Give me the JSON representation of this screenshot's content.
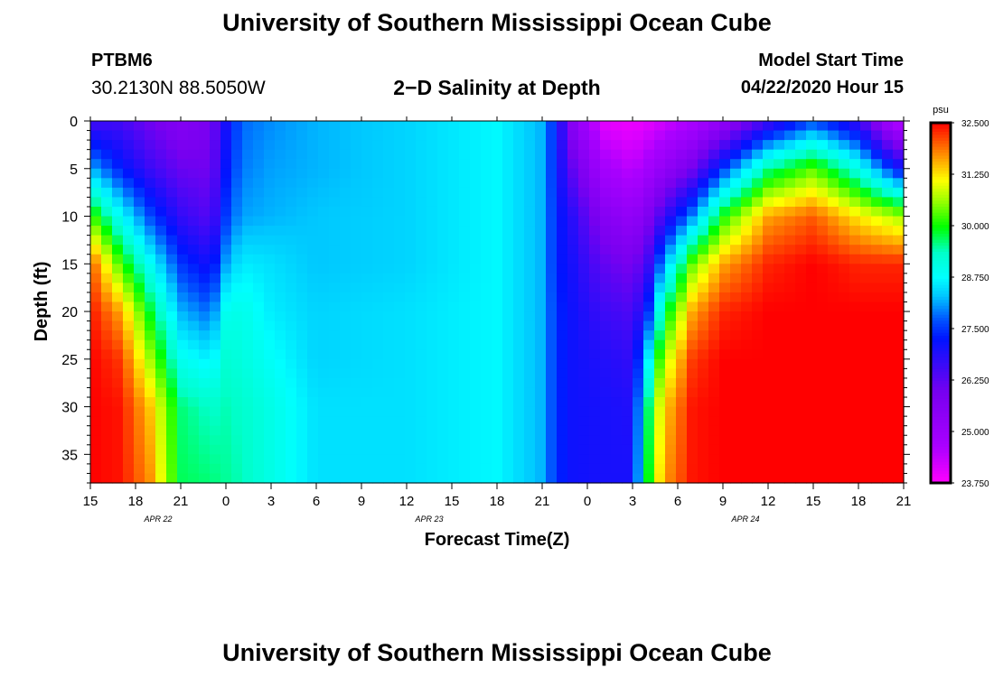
{
  "header": {
    "title": "University of Southern Mississippi Ocean Cube",
    "station": "PTBM6",
    "coords": "30.2130N 88.5050W",
    "plot_title": "2−D Salinity at Depth",
    "model_start_label": "Model Start Time",
    "model_start_value": "04/22/2020 Hour 15"
  },
  "footer": {
    "title": "University of Southern Mississippi Ocean Cube"
  },
  "chart_data": {
    "type": "heatmap",
    "title": "2−D Salinity at Depth",
    "xlabel": "Forecast Time(Z)",
    "ylabel": "Depth (ft)",
    "x_ticks": [
      "15",
      "18",
      "21",
      "0",
      "3",
      "6",
      "9",
      "12",
      "15",
      "18",
      "21",
      "0",
      "3",
      "6",
      "9",
      "12",
      "15",
      "18",
      "21"
    ],
    "date_labels": [
      {
        "label": "APR 22",
        "tick_index": 1
      },
      {
        "label": "APR 23",
        "tick_index": 7
      },
      {
        "label": "APR 24",
        "tick_index": 14
      }
    ],
    "y_ticks": [
      0,
      5,
      10,
      15,
      20,
      25,
      30,
      35
    ],
    "ylim": [
      0,
      38
    ],
    "x_hours": [
      0,
      54
    ],
    "colorbar": {
      "unit": "psu",
      "min": 23.75,
      "max": 32.5,
      "tick_labels": [
        "32.500",
        "31.250",
        "30.000",
        "28.750",
        "27.500",
        "26.250",
        "25.000",
        "23.750"
      ]
    },
    "profiles": [
      {
        "t": 0,
        "s0": 26.5,
        "s5": 28.2,
        "s10": 30.3,
        "s15": 32.1,
        "s20": 32.4,
        "s25": 32.5,
        "s30": 32.5,
        "s38": 32.5
      },
      {
        "t": 2,
        "s0": 26.5,
        "s5": 27.3,
        "s10": 28.8,
        "s15": 30.2,
        "s20": 31.6,
        "s25": 32.2,
        "s30": 32.4,
        "s38": 32.4
      },
      {
        "t": 4,
        "s0": 26.0,
        "s5": 26.6,
        "s10": 27.6,
        "s15": 28.8,
        "s20": 29.8,
        "s25": 30.6,
        "s30": 31.4,
        "s38": 31.7
      },
      {
        "t": 6,
        "s0": 25.6,
        "s5": 26.1,
        "s10": 26.7,
        "s15": 27.5,
        "s20": 28.2,
        "s25": 28.9,
        "s30": 29.6,
        "s38": 29.7
      },
      {
        "t": 8,
        "s0": 25.9,
        "s5": 26.0,
        "s10": 26.3,
        "s15": 27.0,
        "s20": 27.8,
        "s25": 28.6,
        "s30": 29.3,
        "s38": 29.6
      },
      {
        "t": 9,
        "s0": 27.0,
        "s5": 27.2,
        "s10": 27.5,
        "s15": 28.1,
        "s20": 28.9,
        "s25": 29.2,
        "s30": 29.4,
        "s38": 29.5
      },
      {
        "t": 10,
        "s0": 27.8,
        "s5": 27.9,
        "s10": 28.1,
        "s15": 28.6,
        "s20": 29.0,
        "s25": 29.1,
        "s30": 29.3,
        "s38": 29.4
      },
      {
        "t": 12,
        "s0": 28.0,
        "s5": 28.1,
        "s10": 28.2,
        "s15": 28.5,
        "s20": 28.6,
        "s25": 28.8,
        "s30": 29.0,
        "s38": 29.0
      },
      {
        "t": 15,
        "s0": 28.2,
        "s5": 28.2,
        "s10": 28.3,
        "s15": 28.3,
        "s20": 28.4,
        "s25": 28.4,
        "s30": 28.5,
        "s38": 28.5
      },
      {
        "t": 21,
        "s0": 28.4,
        "s5": 28.4,
        "s10": 28.4,
        "s15": 28.4,
        "s20": 28.5,
        "s25": 28.5,
        "s30": 28.5,
        "s38": 28.5
      },
      {
        "t": 27,
        "s0": 28.7,
        "s5": 28.7,
        "s10": 28.7,
        "s15": 28.7,
        "s20": 28.7,
        "s25": 28.7,
        "s30": 28.7,
        "s38": 28.7
      },
      {
        "t": 30,
        "s0": 28.2,
        "s5": 28.2,
        "s10": 28.2,
        "s15": 28.2,
        "s20": 28.2,
        "s25": 28.2,
        "s30": 28.2,
        "s38": 28.2
      },
      {
        "t": 31,
        "s0": 27.2,
        "s5": 27.2,
        "s10": 27.3,
        "s15": 27.3,
        "s20": 27.4,
        "s25": 27.4,
        "s30": 27.4,
        "s38": 27.4
      },
      {
        "t": 32,
        "s0": 25.5,
        "s5": 26.2,
        "s10": 26.8,
        "s15": 27.0,
        "s20": 27.1,
        "s25": 27.1,
        "s30": 27.1,
        "s38": 27.1
      },
      {
        "t": 34,
        "s0": 24.0,
        "s5": 24.8,
        "s10": 25.6,
        "s15": 26.2,
        "s20": 26.6,
        "s25": 26.9,
        "s30": 27.0,
        "s38": 27.0
      },
      {
        "t": 36,
        "s0": 23.9,
        "s5": 24.4,
        "s10": 25.2,
        "s15": 25.9,
        "s20": 26.4,
        "s25": 26.7,
        "s30": 26.9,
        "s38": 27.0
      },
      {
        "t": 37,
        "s0": 24.0,
        "s5": 24.8,
        "s10": 25.7,
        "s15": 26.5,
        "s20": 27.3,
        "s25": 28.5,
        "s30": 29.5,
        "s38": 29.8
      },
      {
        "t": 38,
        "s0": 24.2,
        "s5": 25.2,
        "s10": 26.5,
        "s15": 28.0,
        "s20": 29.5,
        "s25": 30.6,
        "s30": 31.3,
        "s38": 31.6
      },
      {
        "t": 40,
        "s0": 24.6,
        "s5": 26.0,
        "s10": 28.0,
        "s15": 30.4,
        "s20": 31.6,
        "s25": 32.2,
        "s30": 32.4,
        "s38": 32.4
      },
      {
        "t": 42,
        "s0": 25.2,
        "s5": 27.5,
        "s10": 30.0,
        "s15": 31.6,
        "s20": 32.3,
        "s25": 32.5,
        "s30": 32.5,
        "s38": 32.5
      },
      {
        "t": 45,
        "s0": 26.5,
        "s5": 29.5,
        "s10": 31.6,
        "s15": 32.3,
        "s20": 32.5,
        "s25": 32.5,
        "s30": 32.5,
        "s38": 32.5
      },
      {
        "t": 48,
        "s0": 27.6,
        "s5": 30.3,
        "s10": 32.0,
        "s15": 32.5,
        "s20": 32.5,
        "s25": 32.5,
        "s30": 32.5,
        "s38": 32.5
      },
      {
        "t": 51,
        "s0": 26.6,
        "s5": 29.0,
        "s10": 31.2,
        "s15": 32.3,
        "s20": 32.5,
        "s25": 32.5,
        "s30": 32.5,
        "s38": 32.5
      },
      {
        "t": 53,
        "s0": 24.8,
        "s5": 27.6,
        "s10": 30.8,
        "s15": 32.3,
        "s20": 32.5,
        "s25": 32.5,
        "s30": 32.5,
        "s38": 32.5
      },
      {
        "t": 54,
        "s0": 24.3,
        "s5": 27.0,
        "s10": 30.6,
        "s15": 32.3,
        "s20": 32.5,
        "s25": 32.5,
        "s30": 32.5,
        "s38": 32.5
      }
    ]
  }
}
